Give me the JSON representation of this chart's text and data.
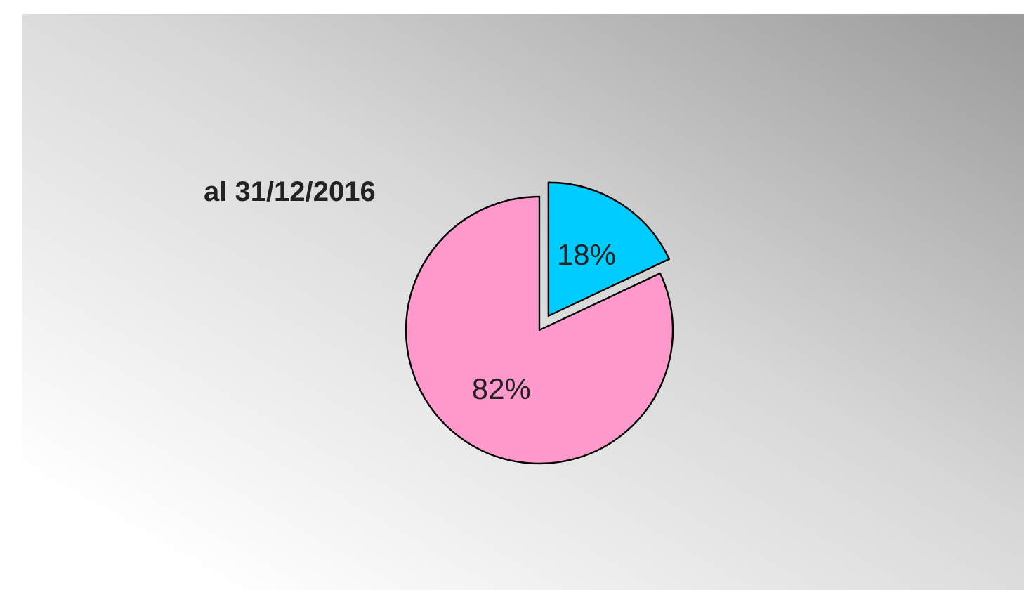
{
  "chart_data": {
    "type": "pie",
    "title": "al 31/12/2016",
    "categories": [
      null,
      null
    ],
    "values": [
      18,
      82
    ],
    "colors": [
      "#00ccff",
      "#ff99cc"
    ],
    "value_labels": [
      "18%",
      "82%"
    ]
  }
}
